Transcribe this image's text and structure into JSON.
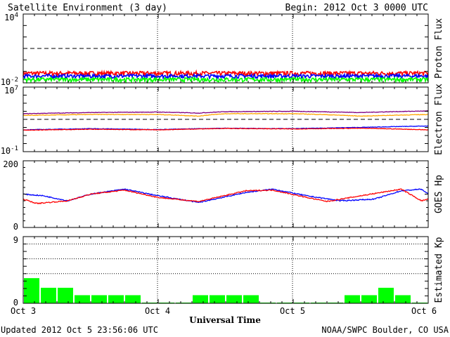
{
  "header": {
    "title": "Satellite Environment (3 day)",
    "begin": "Begin:  2012 Oct 3 0000 UTC"
  },
  "footer": {
    "updated": "Updated 2012 Oct  5 23:56:06 UTC",
    "credit": "NOAA/SWPC Boulder, CO USA"
  },
  "colors": {
    "red": "#ff0000",
    "blue": "#0000ff",
    "green": "#00ff00",
    "purple": "#800080",
    "orange": "#ffa500",
    "black": "#000000"
  },
  "chart_data": [
    {
      "type": "line",
      "name": "proton-flux",
      "ylabel": "Proton Flux",
      "scale": "log",
      "ylim": [
        0.01,
        10000
      ],
      "ytick_labels": [
        {
          "base": "10",
          "exp": "4"
        },
        {
          "base": "10",
          "exp": "-2"
        }
      ],
      "threshold": 10,
      "x_range_days": [
        0,
        3
      ],
      "series": [
        {
          "color": "red",
          "level": 0.07,
          "noise": 0.03
        },
        {
          "color": "blue",
          "level": 0.04,
          "noise": 0.015
        },
        {
          "color": "green",
          "level": 0.02,
          "noise": 0.008
        }
      ]
    },
    {
      "type": "line",
      "name": "electron-flux",
      "ylabel": "Electron Flux",
      "scale": "log",
      "ylim": [
        0.1,
        10000000
      ],
      "ytick_labels": [
        {
          "base": "10",
          "exp": "7"
        },
        {
          "base": "10",
          "exp": "-1"
        }
      ],
      "threshold": 1000,
      "x_range_days": [
        0,
        3
      ],
      "series": [
        {
          "color": "purple",
          "points": [
            [
              0,
              5000
            ],
            [
              0.5,
              7000
            ],
            [
              1,
              8000
            ],
            [
              1.3,
              6000
            ],
            [
              1.5,
              9000
            ],
            [
              2,
              10000
            ],
            [
              2.5,
              7000
            ],
            [
              3,
              11000
            ]
          ]
        },
        {
          "color": "orange",
          "points": [
            [
              0,
              3000
            ],
            [
              0.5,
              4000
            ],
            [
              1,
              4000
            ],
            [
              1.3,
              2500
            ],
            [
              1.5,
              5000
            ],
            [
              2,
              5000
            ],
            [
              2.5,
              2500
            ],
            [
              3,
              4000
            ]
          ]
        },
        {
          "color": "blue",
          "points": [
            [
              0,
              50
            ],
            [
              0.5,
              70
            ],
            [
              1,
              55
            ],
            [
              1.5,
              80
            ],
            [
              2,
              70
            ],
            [
              2.5,
              100
            ],
            [
              3,
              150
            ]
          ]
        },
        {
          "color": "red",
          "points": [
            [
              0,
              45
            ],
            [
              0.5,
              60
            ],
            [
              1,
              50
            ],
            [
              1.5,
              75
            ],
            [
              2,
              65
            ],
            [
              2.5,
              80
            ],
            [
              3,
              50
            ]
          ]
        }
      ]
    },
    {
      "type": "line",
      "name": "goes-hp",
      "ylabel": "GOES Hp",
      "ylim": [
        0,
        200
      ],
      "ytick_labels": [
        "200",
        "0"
      ],
      "x_range_days": [
        0,
        3
      ],
      "series": [
        {
          "color": "blue",
          "points": [
            [
              0,
              100
            ],
            [
              0.15,
              95
            ],
            [
              0.33,
              80
            ],
            [
              0.5,
              100
            ],
            [
              0.75,
              115
            ],
            [
              1.0,
              95
            ],
            [
              1.3,
              75
            ],
            [
              1.65,
              105
            ],
            [
              1.85,
              115
            ],
            [
              2.1,
              95
            ],
            [
              2.35,
              80
            ],
            [
              2.6,
              85
            ],
            [
              2.8,
              110
            ],
            [
              2.95,
              115
            ],
            [
              3.0,
              100
            ]
          ]
        },
        {
          "color": "red",
          "points": [
            [
              0,
              85
            ],
            [
              0.1,
              72
            ],
            [
              0.33,
              80
            ],
            [
              0.5,
              100
            ],
            [
              0.75,
              112
            ],
            [
              1.0,
              90
            ],
            [
              1.3,
              78
            ],
            [
              1.65,
              110
            ],
            [
              1.85,
              112
            ],
            [
              2.1,
              90
            ],
            [
              2.25,
              78
            ],
            [
              2.5,
              95
            ],
            [
              2.8,
              115
            ],
            [
              2.95,
              80
            ],
            [
              3.0,
              85
            ]
          ]
        }
      ]
    },
    {
      "type": "bar",
      "name": "estimated-kp",
      "ylabel": "Estimated Kp",
      "ylim": [
        0,
        9
      ],
      "ytick_labels": [
        "9",
        "0"
      ],
      "dotted_levels": [
        4,
        6,
        8
      ],
      "values": [
        3.3,
        2,
        2,
        1,
        1,
        1,
        1,
        0,
        0,
        0,
        1,
        1,
        1,
        1,
        0,
        0,
        0,
        0,
        0,
        1,
        1,
        2,
        1,
        0
      ],
      "bar_color": "green"
    }
  ],
  "x_axis": {
    "label": "Universal Time",
    "tick_labels": [
      "Oct 3",
      "Oct 4",
      "Oct 5",
      "Oct 6"
    ]
  }
}
